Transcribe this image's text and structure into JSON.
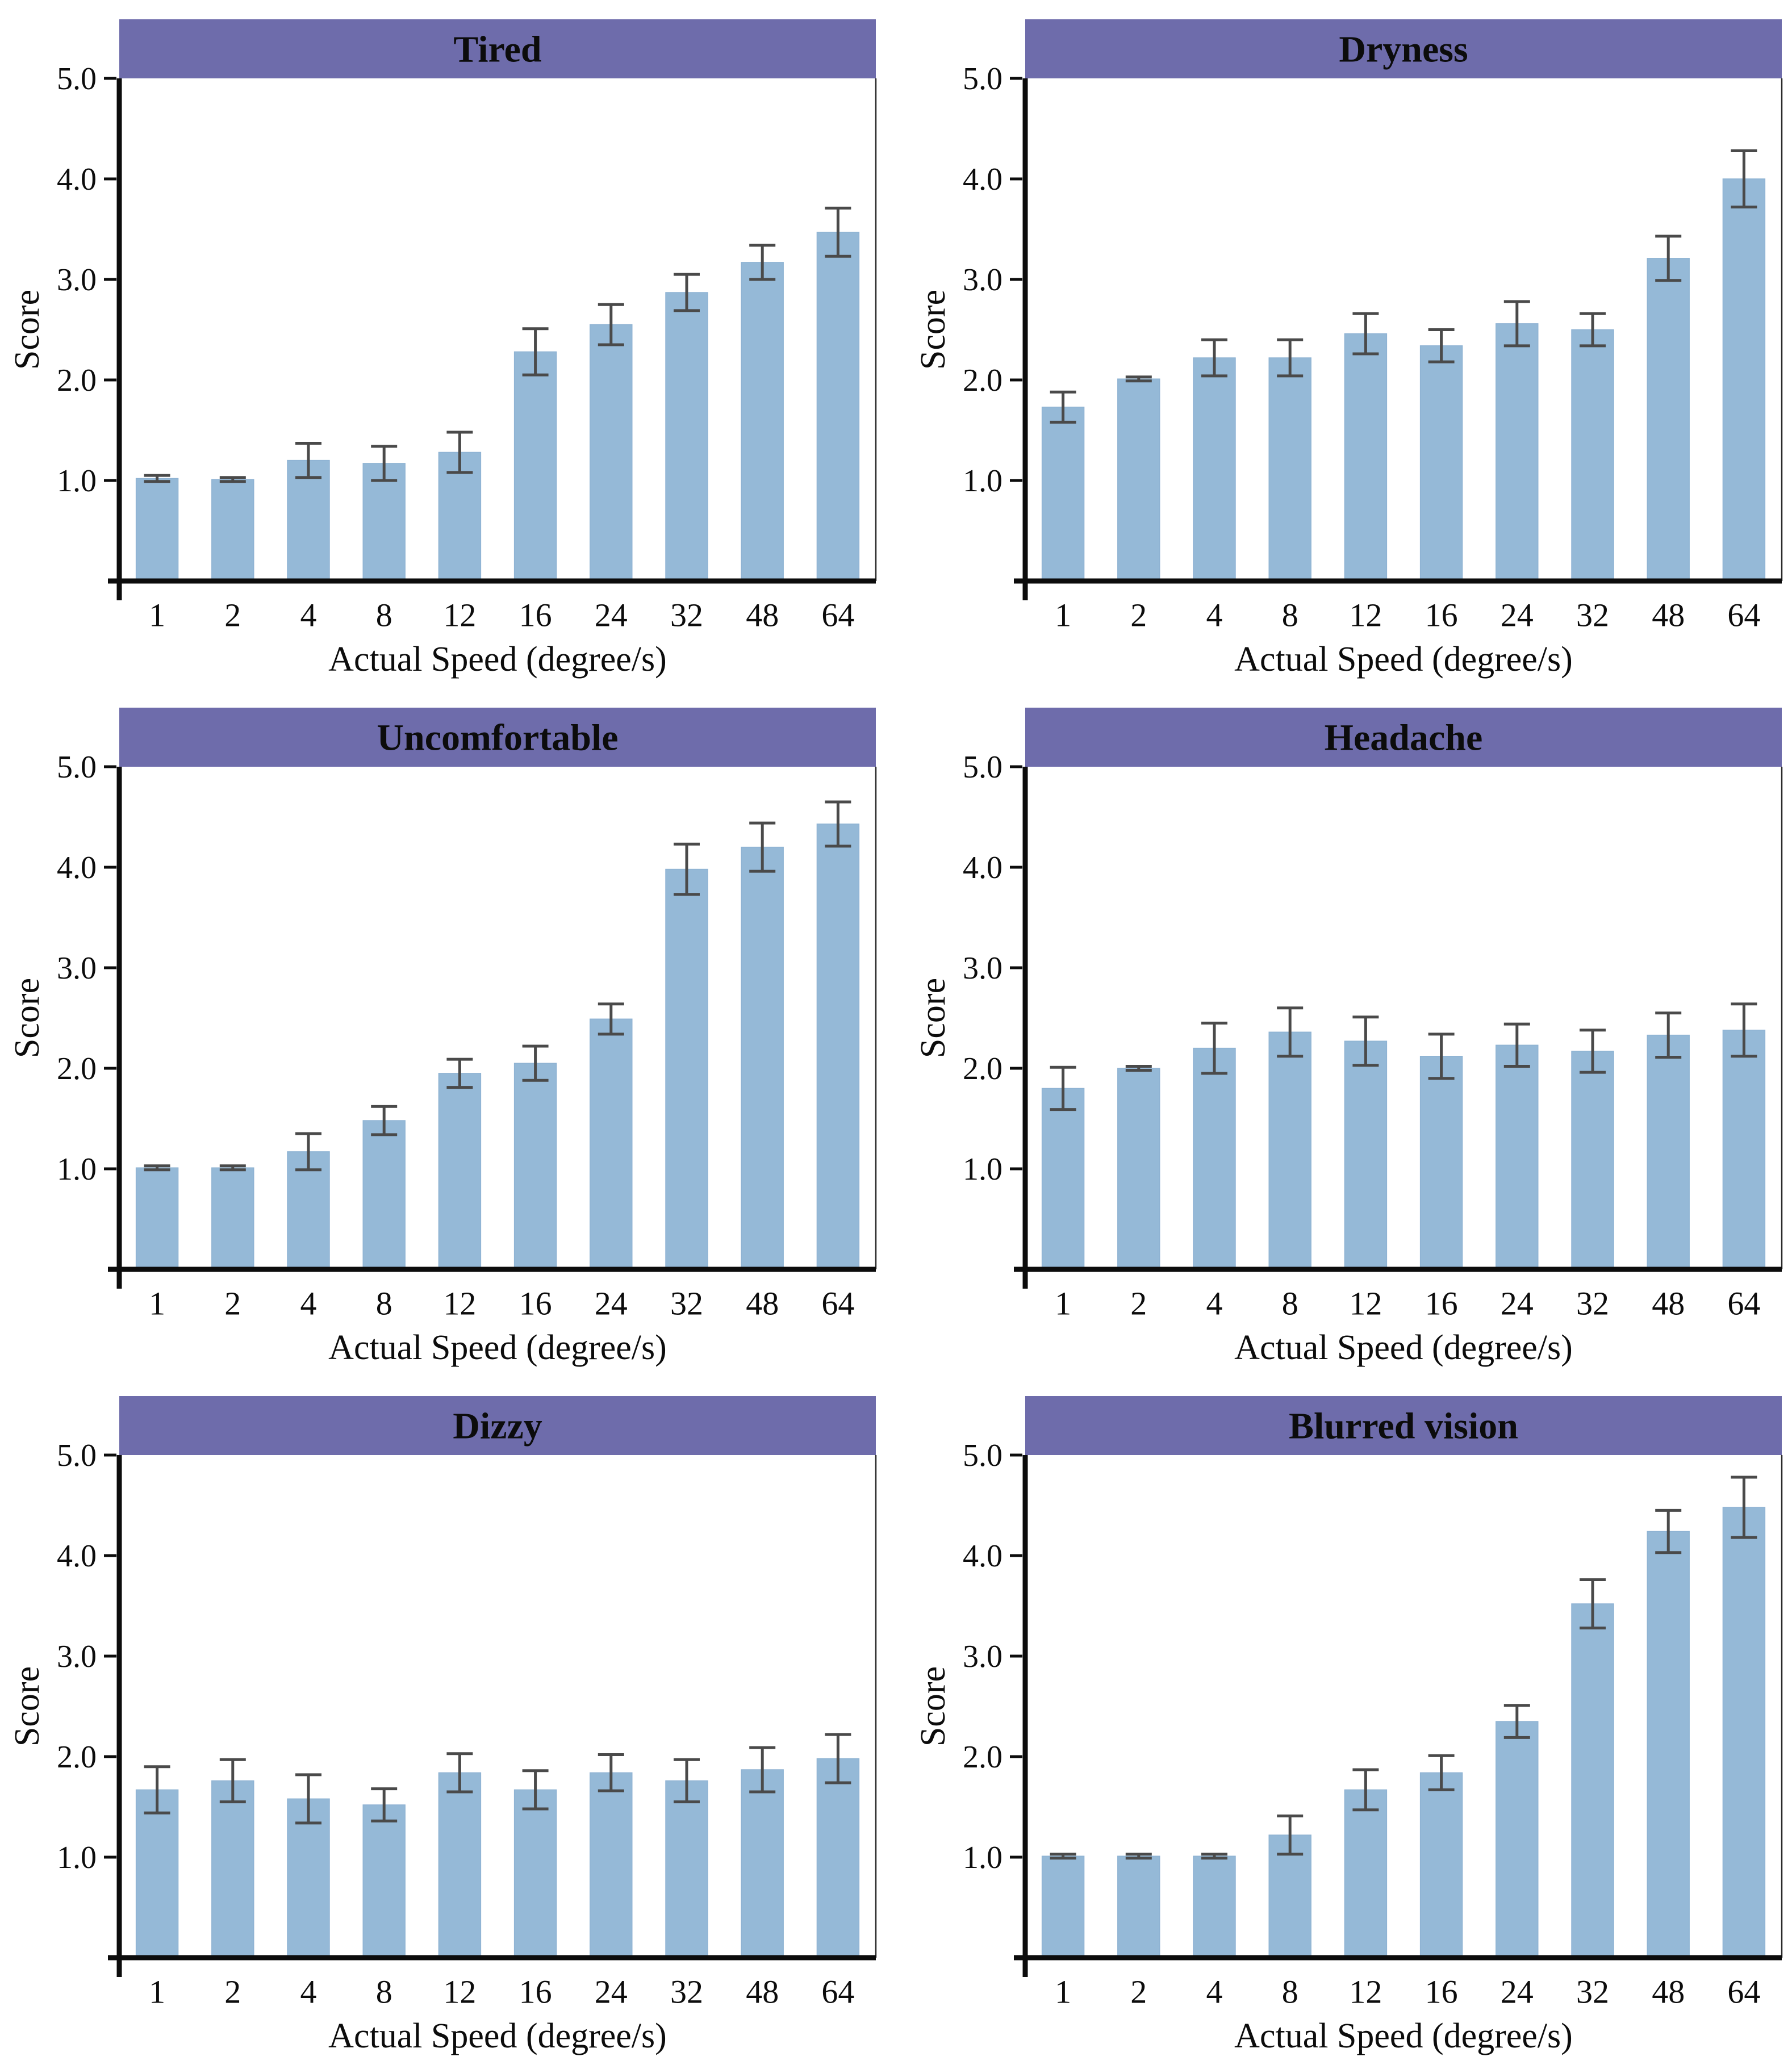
{
  "figure": {
    "description": "Six bar-chart panels of symptom scores versus rotation speed",
    "panel_titles": [
      "Tired",
      "Dryness",
      "Uncomfortable",
      "Headache",
      "Dizzy",
      "Blurred vision"
    ],
    "xlabel": "Actual Speed（degree/s）",
    "ylabel": "Score",
    "ytick_labels": [
      "1.0",
      "2.0",
      "3.0",
      "4.0",
      "5.0"
    ]
  },
  "colors": {
    "banner": "#6e6cab",
    "title_text": "#ffffff",
    "bar_fill": "#95b9d7",
    "bar_edge": "#8fb3d3",
    "error_bar": "#4a4a4a",
    "axis": "#0c0c0c",
    "plot_border": "#2a2a2a",
    "background": "#ffffff"
  },
  "chart_data": [
    {
      "type": "bar",
      "title": "Tired",
      "categories": [
        "1",
        "2",
        "4",
        "8",
        "12",
        "16",
        "24",
        "32",
        "48",
        "64"
      ],
      "values": [
        1.02,
        1.01,
        1.2,
        1.17,
        1.28,
        2.28,
        2.55,
        2.87,
        3.17,
        3.47
      ],
      "errors": [
        0.03,
        0.02,
        0.17,
        0.17,
        0.2,
        0.23,
        0.2,
        0.18,
        0.17,
        0.24
      ],
      "xlabel": "Actual Speed（degree/s）",
      "ylabel": "Score",
      "ylim": [
        0,
        5.0
      ],
      "yticks": [
        1.0,
        2.0,
        3.0,
        4.0,
        5.0
      ],
      "grid": false,
      "legend": null
    },
    {
      "type": "bar",
      "title": "Dryness",
      "categories": [
        "1",
        "2",
        "4",
        "8",
        "12",
        "16",
        "24",
        "32",
        "48",
        "64"
      ],
      "values": [
        1.73,
        2.01,
        2.22,
        2.22,
        2.46,
        2.34,
        2.56,
        2.5,
        3.21,
        4.0
      ],
      "errors": [
        0.15,
        0.02,
        0.18,
        0.18,
        0.2,
        0.16,
        0.22,
        0.16,
        0.22,
        0.28
      ],
      "xlabel": "Actual Speed（degree/s）",
      "ylabel": "Score",
      "ylim": [
        0,
        5.0
      ],
      "yticks": [
        1.0,
        2.0,
        3.0,
        4.0,
        5.0
      ],
      "grid": false,
      "legend": null
    },
    {
      "type": "bar",
      "title": "Uncomfortable",
      "categories": [
        "1",
        "2",
        "4",
        "8",
        "12",
        "16",
        "24",
        "32",
        "48",
        "64"
      ],
      "values": [
        1.01,
        1.01,
        1.17,
        1.48,
        1.95,
        2.05,
        2.49,
        3.98,
        4.2,
        4.43
      ],
      "errors": [
        0.02,
        0.02,
        0.18,
        0.14,
        0.14,
        0.17,
        0.15,
        0.25,
        0.24,
        0.22
      ],
      "xlabel": "Actual Speed（degree/s）",
      "ylabel": "Score",
      "ylim": [
        0,
        5.0
      ],
      "yticks": [
        1.0,
        2.0,
        3.0,
        4.0,
        5.0
      ],
      "grid": false,
      "legend": null
    },
    {
      "type": "bar",
      "title": "Headache",
      "categories": [
        "1",
        "2",
        "4",
        "8",
        "12",
        "16",
        "24",
        "32",
        "48",
        "64"
      ],
      "values": [
        1.8,
        2.0,
        2.2,
        2.36,
        2.27,
        2.12,
        2.23,
        2.17,
        2.33,
        2.38
      ],
      "errors": [
        0.21,
        0.02,
        0.25,
        0.24,
        0.24,
        0.22,
        0.21,
        0.21,
        0.22,
        0.26
      ],
      "xlabel": "Actual Speed（degree/s）",
      "ylabel": "Score",
      "ylim": [
        0,
        5.0
      ],
      "yticks": [
        1.0,
        2.0,
        3.0,
        4.0,
        5.0
      ],
      "grid": false,
      "legend": null
    },
    {
      "type": "bar",
      "title": "Dizzy",
      "categories": [
        "1",
        "2",
        "4",
        "8",
        "12",
        "16",
        "24",
        "32",
        "48",
        "64"
      ],
      "values": [
        1.67,
        1.76,
        1.58,
        1.52,
        1.84,
        1.67,
        1.84,
        1.76,
        1.87,
        1.98
      ],
      "errors": [
        0.23,
        0.21,
        0.24,
        0.16,
        0.19,
        0.19,
        0.18,
        0.21,
        0.22,
        0.24
      ],
      "xlabel": "Actual Speed（degree/s）",
      "ylabel": "Score",
      "ylim": [
        0,
        5.0
      ],
      "yticks": [
        1.0,
        2.0,
        3.0,
        4.0,
        5.0
      ],
      "grid": false,
      "legend": null
    },
    {
      "type": "bar",
      "title": "Blurred vision",
      "categories": [
        "1",
        "2",
        "4",
        "8",
        "12",
        "16",
        "24",
        "32",
        "48",
        "64"
      ],
      "values": [
        1.01,
        1.01,
        1.01,
        1.22,
        1.67,
        1.84,
        2.35,
        3.52,
        4.24,
        4.48
      ],
      "errors": [
        0.02,
        0.02,
        0.02,
        0.19,
        0.2,
        0.17,
        0.16,
        0.24,
        0.21,
        0.3
      ],
      "xlabel": "Actual Speed（degree/s）",
      "ylabel": "Score",
      "ylim": [
        0,
        5.0
      ],
      "yticks": [
        1.0,
        2.0,
        3.0,
        4.0,
        5.0
      ],
      "grid": false,
      "legend": null
    }
  ]
}
